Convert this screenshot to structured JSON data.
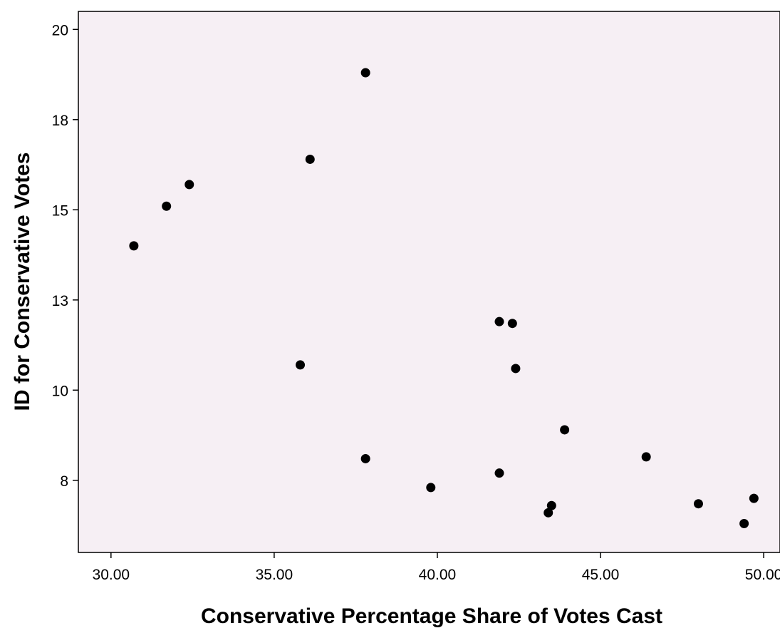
{
  "chart_data": {
    "type": "scatter",
    "title": "",
    "xlabel": "Conservative Percentage Share of Votes Cast",
    "ylabel": "ID for Conservative Votes",
    "xlim": [
      29.0,
      50.5
    ],
    "ylim": [
      5.5,
      20.5
    ],
    "x_ticks": [
      30,
      35,
      40,
      45,
      50
    ],
    "x_tick_labels": [
      "30.00",
      "35.00",
      "40.00",
      "45.00",
      "50.00"
    ],
    "y_ticks": [
      7.5,
      10,
      12.5,
      15,
      17.5,
      20
    ],
    "y_tick_labels": [
      "8",
      "10",
      "13",
      "15",
      "18",
      "20"
    ],
    "grid": false,
    "plot_background": "#f6eff4",
    "point_color": "#000000",
    "points": [
      {
        "x": 30.7,
        "y": 14.0
      },
      {
        "x": 31.7,
        "y": 15.1
      },
      {
        "x": 32.4,
        "y": 15.7
      },
      {
        "x": 35.8,
        "y": 10.7
      },
      {
        "x": 36.1,
        "y": 16.4
      },
      {
        "x": 37.8,
        "y": 18.8
      },
      {
        "x": 37.8,
        "y": 8.1
      },
      {
        "x": 39.8,
        "y": 7.3
      },
      {
        "x": 41.9,
        "y": 11.9
      },
      {
        "x": 41.9,
        "y": 7.7
      },
      {
        "x": 42.3,
        "y": 11.85
      },
      {
        "x": 42.4,
        "y": 10.6
      },
      {
        "x": 43.4,
        "y": 6.6
      },
      {
        "x": 43.5,
        "y": 6.8
      },
      {
        "x": 43.9,
        "y": 8.9
      },
      {
        "x": 46.4,
        "y": 8.15
      },
      {
        "x": 48.0,
        "y": 6.85
      },
      {
        "x": 49.4,
        "y": 6.3
      },
      {
        "x": 49.7,
        "y": 7.0
      }
    ]
  }
}
